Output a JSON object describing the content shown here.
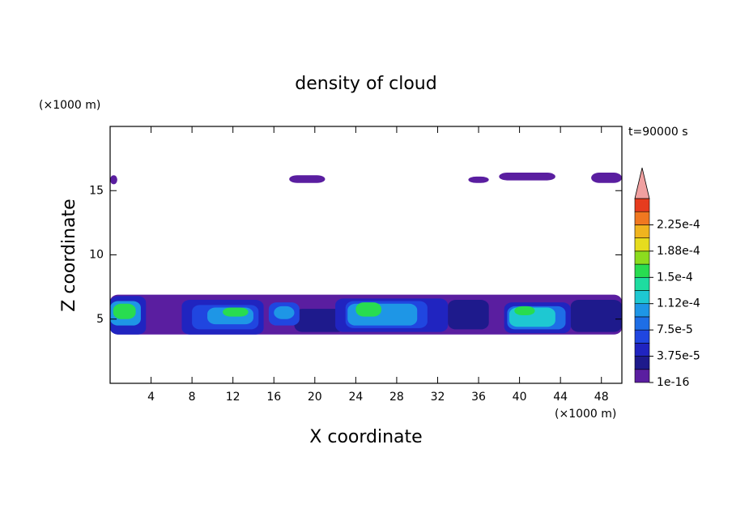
{
  "chart_data": {
    "type": "contour",
    "title": "density of cloud",
    "xlabel": "X coordinate",
    "ylabel": "Z coordinate",
    "x_unit": "(×1000 m)",
    "y_unit": "(×1000 m)",
    "annotation": "t=90000 s",
    "xlim": [
      0,
      50
    ],
    "ylim": [
      0,
      20
    ],
    "xticks": [
      4,
      8,
      12,
      16,
      20,
      24,
      28,
      32,
      36,
      40,
      44,
      48
    ],
    "yticks": [
      5,
      10,
      15
    ],
    "levels": [
      1e-16,
      1.875e-05,
      3.75e-05,
      5.625e-05,
      7.5e-05,
      9.375e-05,
      0.0001125,
      0.00013125,
      0.00015,
      0.00016875,
      0.0001875,
      0.00020625,
      0.000225,
      0.00024375
    ],
    "clim": [
      1e-16,
      0.0002625
    ],
    "colors": [
      "#5a1ea0",
      "#1e1a8c",
      "#2024c0",
      "#2046e0",
      "#1e6ee6",
      "#1e96e6",
      "#1ec8d2",
      "#1edca0",
      "#28dc50",
      "#8cdc1e",
      "#e6dc1e",
      "#f0b41e",
      "#f07820",
      "#e63c1e"
    ],
    "extend_color": "#f0a0a0",
    "colorbar_ticks": [
      1e-16,
      {
        "value": 3.75e-05,
        "label": "3.75e-5"
      },
      {
        "value": 7.5e-05,
        "label": "7.5e-5"
      },
      {
        "value": 0.0001125,
        "label": "1.12e-4"
      },
      {
        "value": 0.00015,
        "label": "1.5e-4"
      },
      {
        "value": 0.0001875,
        "label": "1.88e-4"
      },
      {
        "value": 0.000225,
        "label": "2.25e-4"
      }
    ],
    "cells": [
      {
        "x": [
          0,
          0.7
        ],
        "z": [
          15.5,
          16.2
        ],
        "value": 1e-05
      },
      {
        "x": [
          17.5,
          21
        ],
        "z": [
          15.6,
          16.2
        ],
        "value": 1e-05
      },
      {
        "x": [
          35,
          37
        ],
        "z": [
          15.6,
          16.1
        ],
        "value": 1e-05
      },
      {
        "x": [
          38,
          43.5
        ],
        "z": [
          15.8,
          16.4
        ],
        "value": 1e-05
      },
      {
        "x": [
          47,
          50
        ],
        "z": [
          15.6,
          16.4
        ],
        "value": 1e-05
      },
      {
        "x": [
          0,
          50
        ],
        "z": [
          3.8,
          6.9
        ],
        "value": 1e-05
      },
      {
        "x": [
          18,
          23
        ],
        "z": [
          4,
          5.8
        ],
        "value": 2e-05
      },
      {
        "x": [
          33,
          37
        ],
        "z": [
          4.2,
          6.5
        ],
        "value": 2e-05
      },
      {
        "x": [
          45,
          50
        ],
        "z": [
          4,
          6.5
        ],
        "value": 2e-05
      },
      {
        "x": [
          0,
          3.5
        ],
        "z": [
          3.8,
          6.8
        ],
        "value": 5e-05
      },
      {
        "x": [
          0,
          3
        ],
        "z": [
          4.5,
          6.4
        ],
        "value": 0.0001
      },
      {
        "x": [
          0.3,
          2.5
        ],
        "z": [
          5,
          6.2
        ],
        "value": 0.00016
      },
      {
        "x": [
          7,
          15
        ],
        "z": [
          3.8,
          6.5
        ],
        "value": 4e-05
      },
      {
        "x": [
          8,
          14.5
        ],
        "z": [
          4.2,
          6.1
        ],
        "value": 7e-05
      },
      {
        "x": [
          9.5,
          14
        ],
        "z": [
          4.6,
          5.9
        ],
        "value": 0.00011
      },
      {
        "x": [
          11,
          13.5
        ],
        "z": [
          5.2,
          5.9
        ],
        "value": 0.00015
      },
      {
        "x": [
          15.5,
          18.5
        ],
        "z": [
          4.5,
          6.3
        ],
        "value": 6e-05
      },
      {
        "x": [
          16,
          18
        ],
        "z": [
          5,
          6
        ],
        "value": 0.0001
      },
      {
        "x": [
          22,
          33
        ],
        "z": [
          4,
          6.6
        ],
        "value": 4e-05
      },
      {
        "x": [
          23,
          31
        ],
        "z": [
          4.3,
          6.4
        ],
        "value": 7e-05
      },
      {
        "x": [
          23.2,
          30
        ],
        "z": [
          4.5,
          6.2
        ],
        "value": 0.00011
      },
      {
        "x": [
          24,
          26.5
        ],
        "z": [
          5.2,
          6.3
        ],
        "value": 0.00016
      },
      {
        "x": [
          38.5,
          45
        ],
        "z": [
          3.9,
          6.3
        ],
        "value": 4e-05
      },
      {
        "x": [
          38.8,
          44.5
        ],
        "z": [
          4.2,
          6
        ],
        "value": 8e-05
      },
      {
        "x": [
          39,
          43.5
        ],
        "z": [
          4.4,
          5.9
        ],
        "value": 0.00012
      },
      {
        "x": [
          39.5,
          41.5
        ],
        "z": [
          5.3,
          6
        ],
        "value": 0.00016
      }
    ]
  }
}
